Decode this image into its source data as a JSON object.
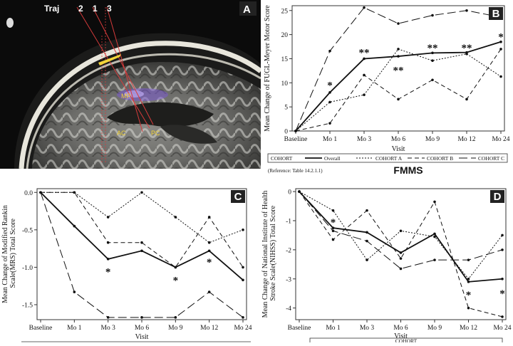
{
  "mri": {
    "letter": "A",
    "traj_label": "Traj",
    "traj_numbers": [
      "2",
      "1",
      "3"
    ],
    "markers": [
      "MP",
      "AC",
      "PC"
    ]
  },
  "chart_data": [
    {
      "id": "B",
      "type": "line",
      "panel_letter": "B",
      "title": "FMMS",
      "xlabel": "Visit",
      "ylabel": "Mean Change of FUGL-Meyer Motor Score",
      "categories": [
        "Baseline",
        "Mo 1",
        "Mo 3",
        "Mo 6",
        "Mo 9",
        "Mo 12",
        "Mo 24"
      ],
      "ylim": [
        0,
        26
      ],
      "yticks": [
        0,
        5,
        10,
        15,
        20,
        25
      ],
      "series": [
        {
          "name": "Overall",
          "style": "solid",
          "values": [
            0,
            8,
            15,
            15.5,
            16.2,
            16.3,
            18.5
          ]
        },
        {
          "name": "COHORT A",
          "style": "dotted",
          "values": [
            0,
            6,
            7.5,
            17,
            14.6,
            16,
            11.3
          ]
        },
        {
          "name": "COHORT B",
          "style": "dashed",
          "values": [
            0,
            1.6,
            11.6,
            6.6,
            10.6,
            6.6,
            17
          ]
        },
        {
          "name": "COHORT C",
          "style": "longdash",
          "values": [
            0,
            16.6,
            25.6,
            22.3,
            24,
            25,
            23.6
          ]
        }
      ],
      "stars": [
        {
          "x": "Mo 1",
          "y": 9.5,
          "text": "*"
        },
        {
          "x": "Mo 3",
          "y": 16.3,
          "text": "**"
        },
        {
          "x": "Mo 6",
          "y": 12.6,
          "text": "**"
        },
        {
          "x": "Mo 9",
          "y": 17.3,
          "text": "**"
        },
        {
          "x": "Mo 12",
          "y": 17.3,
          "text": "**"
        },
        {
          "x": "Mo 24",
          "y": 19.6,
          "text": "*"
        }
      ],
      "legend": {
        "title": "COHORT",
        "entries": [
          "Overall",
          "COHORT A",
          "COHORT B",
          "COHORT C"
        ]
      },
      "reference": "(Reference: Table 14.2.1.1)"
    },
    {
      "id": "C",
      "type": "line",
      "panel_letter": "C",
      "xlabel": "Visit",
      "ylabel": "Mean Change of Modified Rankin Scale(MRS) Total Score",
      "categories": [
        "Baseline",
        "Mo 1",
        "Mo 3",
        "Mo 6",
        "Mo 9",
        "Mo 12",
        "Mo 24"
      ],
      "ylim": [
        -1.7,
        0.05
      ],
      "yticks": [
        0.0,
        -0.5,
        -1.0,
        -1.5
      ],
      "ytick_labels": [
        "0.0",
        "-0.5",
        "-1.0",
        "-1.5"
      ],
      "series": [
        {
          "name": "Overall",
          "style": "solid",
          "values": [
            0,
            -0.45,
            -0.89,
            -0.78,
            -1.0,
            -0.78,
            -1.17
          ]
        },
        {
          "name": "COHORT A",
          "style": "dotted",
          "values": [
            0,
            0,
            -0.33,
            0,
            -0.33,
            -0.67,
            -0.5
          ]
        },
        {
          "name": "COHORT B",
          "style": "dashed",
          "values": [
            0,
            0,
            -0.67,
            -0.67,
            -1.0,
            -0.33,
            -1.0
          ]
        },
        {
          "name": "COHORT C",
          "style": "longdash",
          "values": [
            0,
            -1.33,
            -1.67,
            -1.67,
            -1.67,
            -1.33,
            -1.67
          ]
        }
      ],
      "stars": [
        {
          "x": "Mo 3",
          "y": -1.06,
          "text": "*"
        },
        {
          "x": "Mo 9",
          "y": -1.17,
          "text": "*"
        },
        {
          "x": "Mo 12",
          "y": -0.93,
          "text": "*"
        }
      ]
    },
    {
      "id": "D",
      "type": "line",
      "panel_letter": "D",
      "xlabel": "Visit",
      "ylabel": "Mean Change of National Institute of Health Stroke Scale(NIHSS) Total Score",
      "categories": [
        "Baseline",
        "Mo 1",
        "Mo 3",
        "Mo 6",
        "Mo 9",
        "Mo 12",
        "Mo 24"
      ],
      "ylim": [
        -4.4,
        0.1
      ],
      "yticks": [
        0,
        -1,
        -2,
        -3,
        -4
      ],
      "series": [
        {
          "name": "Overall",
          "style": "solid",
          "values": [
            0,
            -1.25,
            -1.4,
            -2.1,
            -1.45,
            -3.1,
            -3.0
          ]
        },
        {
          "name": "COHORT A",
          "style": "dotted",
          "values": [
            0,
            -0.65,
            -2.35,
            -1.35,
            -1.55,
            -3.0,
            -1.5
          ]
        },
        {
          "name": "COHORT B",
          "style": "dashed",
          "values": [
            0,
            -1.65,
            -0.65,
            -2.3,
            -0.35,
            -4.0,
            -4.3
          ]
        },
        {
          "name": "COHORT C",
          "style": "longdash",
          "values": [
            0,
            -1.35,
            -1.7,
            -2.65,
            -2.35,
            -2.35,
            -2.0
          ]
        }
      ],
      "stars": [
        {
          "x": "Mo 1",
          "y": -1.05,
          "text": "*"
        },
        {
          "x": "Mo 12",
          "y": -3.55,
          "text": "*"
        },
        {
          "x": "Mo 24",
          "y": -3.5,
          "text": "*"
        }
      ],
      "legend": {
        "title": "COHORT"
      }
    }
  ]
}
